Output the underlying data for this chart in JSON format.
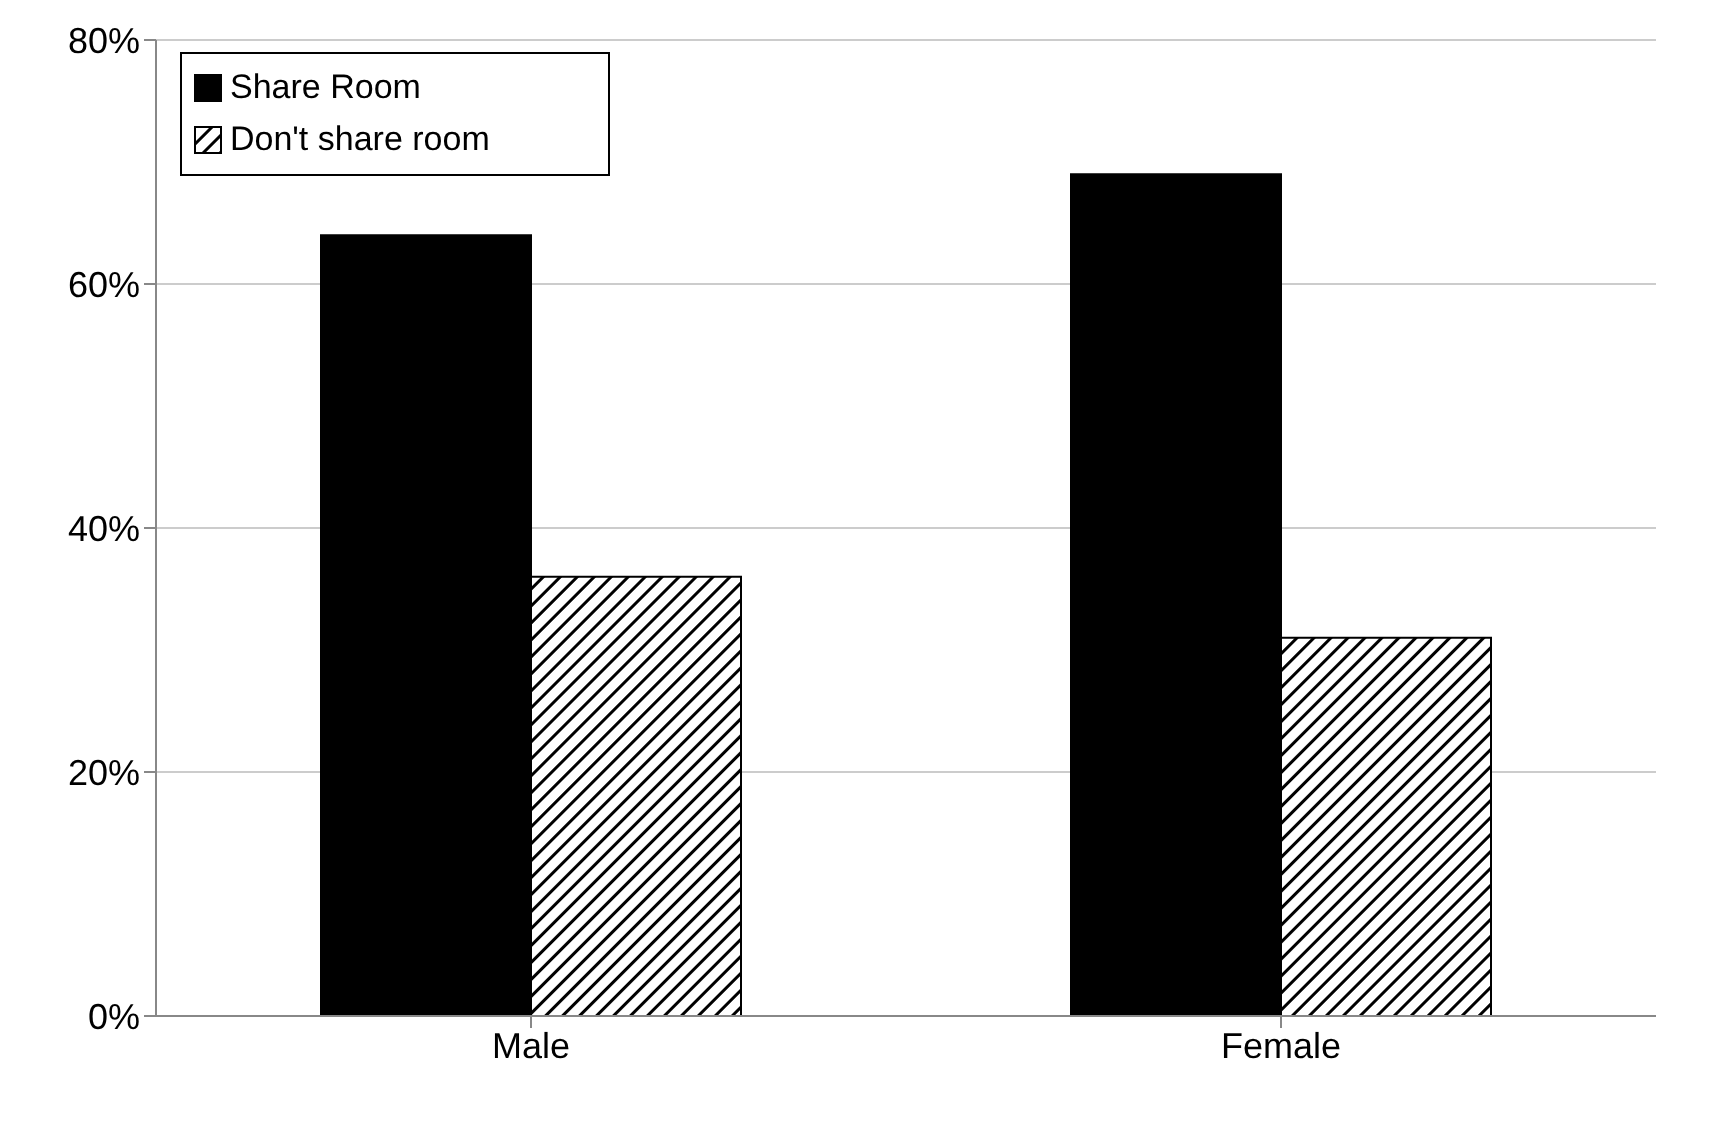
{
  "chart_data": {
    "type": "bar",
    "categories": [
      "Male",
      "Female"
    ],
    "series": [
      {
        "name": "Share Room",
        "color": "#000000",
        "values": [
          64,
          69
        ]
      },
      {
        "name": "Don't share room",
        "color": "#000000",
        "values": [
          36,
          31
        ]
      }
    ],
    "ylim": [
      0,
      80
    ],
    "yticks": [
      {
        "value": 0,
        "label": "0%"
      },
      {
        "value": 20,
        "label": "20%"
      },
      {
        "value": 40,
        "label": "40%"
      },
      {
        "value": 60,
        "label": "60%"
      },
      {
        "value": 80,
        "label": "80%"
      }
    ],
    "grid": "y",
    "legend": "top left"
  }
}
